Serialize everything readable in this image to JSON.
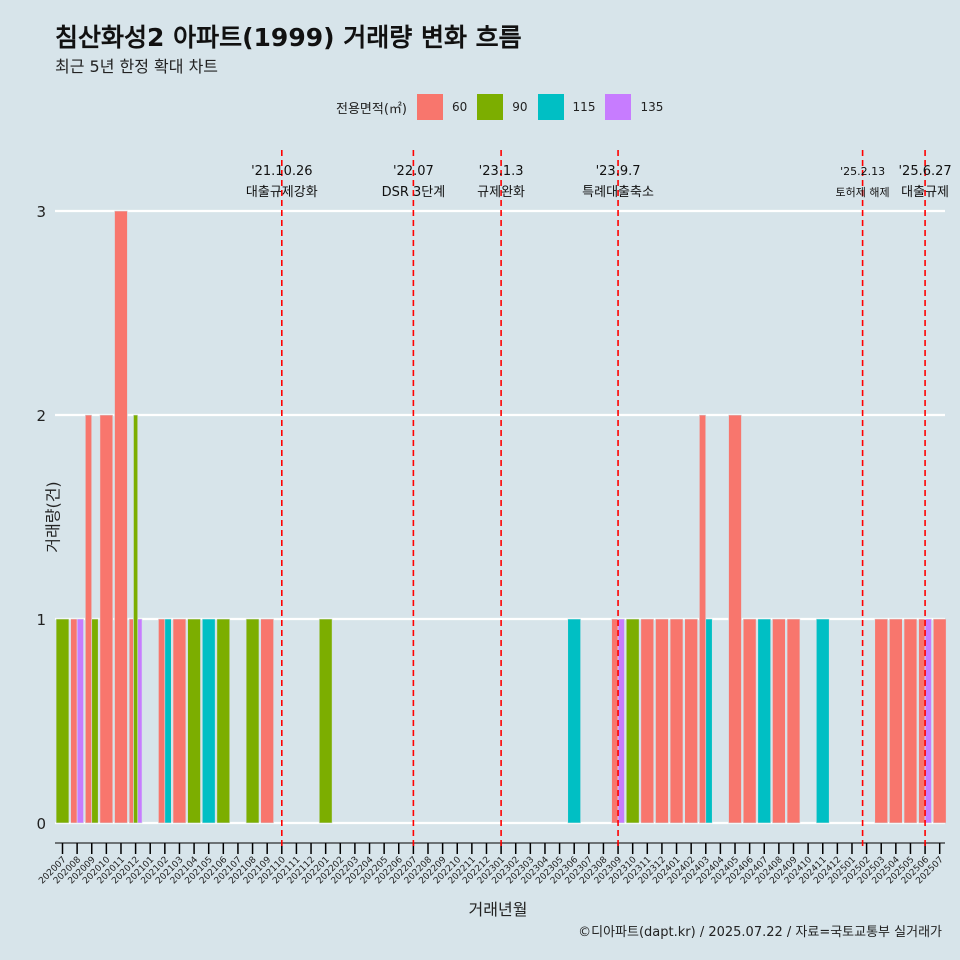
{
  "title": "침산화성2 아파트(1999) 거래량 변화 흐름",
  "subtitle": "최근 5년 한정 확대 차트",
  "legend": {
    "title": "전용면적(㎡)",
    "items": [
      {
        "label": "60",
        "color": "#f8766d"
      },
      {
        "label": "90",
        "color": "#7cae00"
      },
      {
        "label": "115",
        "color": "#00bfc4"
      },
      {
        "label": "135",
        "color": "#c77cff"
      }
    ]
  },
  "caption": "©디아파트(dapt.kr) / 2025.07.22 / 자료=국토교통부 실거래가",
  "chart_data": {
    "type": "bar",
    "xlabel": "거래년월",
    "ylabel": "거래량(건)",
    "ylim": [
      0,
      3
    ],
    "yticks": [
      "0",
      "1",
      "2",
      "3"
    ],
    "categories": [
      "202007",
      "202008",
      "202009",
      "202010",
      "202011",
      "202012",
      "202101",
      "202102",
      "202103",
      "202104",
      "202105",
      "202106",
      "202107",
      "202108",
      "202109",
      "202110",
      "202111",
      "202112",
      "202201",
      "202202",
      "202203",
      "202204",
      "202205",
      "202206",
      "202207",
      "202208",
      "202209",
      "202210",
      "202211",
      "202212",
      "202301",
      "202302",
      "202303",
      "202304",
      "202305",
      "202306",
      "202307",
      "202308",
      "202309",
      "202310",
      "202311",
      "202312",
      "202401",
      "202402",
      "202403",
      "202404",
      "202405",
      "202406",
      "202407",
      "202408",
      "202409",
      "202410",
      "202411",
      "202412",
      "202501",
      "202502",
      "202503",
      "202504",
      "202505",
      "202506",
      "202507"
    ],
    "series": [
      {
        "name": "60",
        "color": "#f8766d",
        "values": [
          0,
          1,
          2,
          2,
          3,
          1,
          0,
          1,
          1,
          0,
          0,
          0,
          0,
          0,
          1,
          0,
          0,
          0,
          0,
          0,
          0,
          0,
          0,
          0,
          0,
          0,
          0,
          0,
          0,
          0,
          0,
          0,
          0,
          0,
          0,
          0,
          0,
          0,
          1,
          0,
          1,
          1,
          1,
          1,
          2,
          0,
          2,
          1,
          0,
          1,
          1,
          0,
          0,
          0,
          0,
          0,
          1,
          1,
          1,
          1,
          1
        ]
      },
      {
        "name": "90",
        "color": "#7cae00",
        "values": [
          1,
          0,
          1,
          0,
          0,
          2,
          0,
          0,
          0,
          1,
          0,
          1,
          0,
          1,
          0,
          0,
          0,
          0,
          1,
          0,
          0,
          0,
          0,
          0,
          0,
          0,
          0,
          0,
          0,
          0,
          0,
          0,
          0,
          0,
          0,
          0,
          0,
          0,
          0,
          1,
          0,
          0,
          0,
          0,
          0,
          0,
          0,
          0,
          0,
          0,
          0,
          0,
          0,
          0,
          0,
          0,
          0,
          0,
          0,
          0,
          0
        ]
      },
      {
        "name": "115",
        "color": "#00bfc4",
        "values": [
          0,
          0,
          0,
          0,
          0,
          0,
          0,
          1,
          0,
          0,
          1,
          0,
          0,
          0,
          0,
          0,
          0,
          0,
          0,
          0,
          0,
          0,
          0,
          0,
          0,
          0,
          0,
          0,
          0,
          0,
          0,
          0,
          0,
          0,
          0,
          1,
          0,
          0,
          0,
          0,
          0,
          0,
          0,
          0,
          1,
          0,
          0,
          0,
          1,
          0,
          0,
          0,
          1,
          0,
          0,
          0,
          0,
          0,
          0,
          0,
          0
        ]
      },
      {
        "name": "135",
        "color": "#c77cff",
        "values": [
          0,
          1,
          0,
          0,
          0,
          1,
          0,
          0,
          0,
          0,
          0,
          0,
          0,
          0,
          0,
          0,
          0,
          0,
          0,
          0,
          0,
          0,
          0,
          0,
          0,
          0,
          0,
          0,
          0,
          0,
          0,
          0,
          0,
          0,
          0,
          0,
          0,
          0,
          1,
          0,
          0,
          0,
          0,
          0,
          0,
          0,
          0,
          0,
          0,
          0,
          0,
          0,
          0,
          0,
          0,
          0,
          0,
          0,
          0,
          1,
          0
        ]
      }
    ],
    "annotations": [
      {
        "x": "202110",
        "date": "'21.10.26",
        "label": "대출규제강화"
      },
      {
        "x": "202207",
        "date": "'22.07",
        "label": "DSR 3단계"
      },
      {
        "x": "202301",
        "date": "'23.1.3",
        "label": "규제완화"
      },
      {
        "x": "202309",
        "date": "'23.9.7",
        "label": "특례대출축소"
      },
      {
        "x": "202502",
        "date": "'25.2.13",
        "label": "토허제 해제"
      },
      {
        "x": "202506",
        "date": "'25.6.27",
        "label": "대출규제"
      }
    ],
    "grid": true,
    "legend_position": "top"
  }
}
